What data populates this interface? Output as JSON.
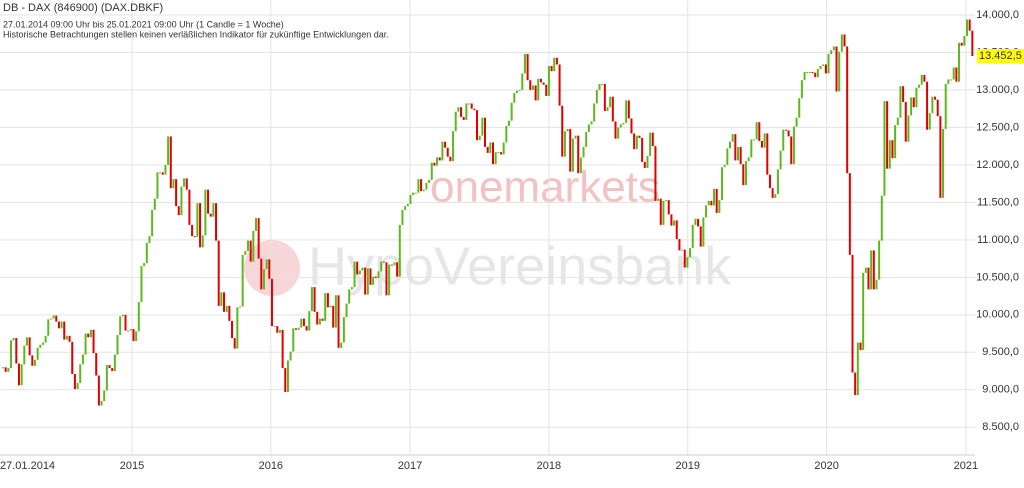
{
  "chart_data": {
    "type": "candlestick",
    "title": "DB - DAX (846900) (DAX.DBKF)",
    "subtitle": "27.01.2014 09:00 Uhr bis 25.01.2021 09:00 Uhr (1 Candle = 1 Woche)",
    "disclaimer": "Historische Betrachtungen stellen keinen verläßlichen Indikator für zukünftige Entwicklungen dar.",
    "watermarks": [
      "onemarkets",
      "HypoVereinsbank"
    ],
    "up_color": "#5cb91c",
    "down_color": "#e00000",
    "grid": true,
    "xlim": [
      "2014-01-27",
      "2021-01-25"
    ],
    "xticks": [
      {
        "value": "2014-01-27",
        "label": "27.01.2014"
      },
      {
        "value": "2015-01-01",
        "label": "2015"
      },
      {
        "value": "2016-01-01",
        "label": "2016"
      },
      {
        "value": "2017-01-01",
        "label": "2017"
      },
      {
        "value": "2018-01-01",
        "label": "2018"
      },
      {
        "value": "2019-01-01",
        "label": "2019"
      },
      {
        "value": "2020-01-01",
        "label": "2020"
      },
      {
        "value": "2021-01-01",
        "label": "2021"
      }
    ],
    "ylim": [
      8130,
      14200
    ],
    "yticks": [
      {
        "value": 8500,
        "label": "8.500,0"
      },
      {
        "value": 9000,
        "label": "9.000,0"
      },
      {
        "value": 9500,
        "label": "9.500,0"
      },
      {
        "value": 10000,
        "label": "10.000,0"
      },
      {
        "value": 10500,
        "label": "10.500,0"
      },
      {
        "value": 11000,
        "label": "11.000,0"
      },
      {
        "value": 11500,
        "label": "11.500,0"
      },
      {
        "value": 12000,
        "label": "12.000,0"
      },
      {
        "value": 12500,
        "label": "12.500,0"
      },
      {
        "value": 13000,
        "label": "13.000,0"
      },
      {
        "value": 13500,
        "label": "13.500,0"
      },
      {
        "value": 14000,
        "label": "14.000,0"
      }
    ],
    "last_price": {
      "value": 13452.5,
      "label": "13.452,5"
    },
    "values": [
      9300,
      9240,
      9290,
      9660,
      9690,
      9350,
      9060,
      9340,
      9590,
      9700,
      9460,
      9320,
      9400,
      9560,
      9600,
      9630,
      9720,
      9940,
      9950,
      9990,
      9910,
      9820,
      9910,
      9670,
      9720,
      9640,
      9210,
      9010,
      9090,
      9340,
      9470,
      9750,
      9700,
      9800,
      9490,
      9190,
      8790,
      8850,
      8990,
      9330,
      9290,
      9250,
      9470,
      9730,
      9980,
      10000,
      9790,
      9790,
      9810,
      9650,
      9780,
      10170,
      10650,
      10690,
      10960,
      11050,
      11400,
      11550,
      11900,
      11900,
      11870,
      12000,
      12380,
      11690,
      11810,
      11450,
      11330,
      11710,
      11820,
      11670,
      11200,
      11050,
      11040,
      11490,
      10900,
      11060,
      11670,
      11350,
      11310,
      11490,
      10990,
      10120,
      10300,
      10040,
      10120,
      9920,
      9690,
      9550,
      10100,
      10110,
      10800,
      10850,
      10990,
      10710,
      11120,
      11290,
      10750,
      10340,
      10610,
      10740,
      10480,
      9850,
      9850,
      9760,
      9800,
      9290,
      8970,
      9390,
      9510,
      9820,
      9800,
      9830,
      9950,
      9850,
      9790,
      10050,
      10370,
      10040,
      9870,
      9950,
      9920,
      10290,
      10100,
      10120,
      9830,
      10260,
      9560,
      9630,
      9970,
      10150,
      10340,
      10370,
      10710,
      10540,
      10590,
      10630,
      10270,
      10620,
      10400,
      10510,
      10490,
      10580,
      10710,
      10700,
      10260,
      10670,
      10660,
      10700,
      10510,
      11200,
      11400,
      11450,
      11480,
      11600,
      11630,
      11630,
      11810,
      11650,
      11670,
      11760,
      11800,
      12030,
      11990,
      12100,
      12060,
      12310,
      12230,
      12110,
      12050,
      12450,
      12710,
      12770,
      12640,
      12600,
      12820,
      12820,
      12750,
      12730,
      12330,
      12390,
      12630,
      12240,
      12160,
      12300,
      12010,
      12170,
      12170,
      12140,
      12300,
      12520,
      12590,
      12830,
      12960,
      12990,
      13000,
      13220,
      13480,
      13130,
      13000,
      13060,
      12860,
      13150,
      13100,
      13070,
      12920,
      13320,
      13250,
      13430,
      13340,
      12790,
      12110,
      12450,
      12480,
      11910,
      12350,
      12390,
      11890,
      12100,
      12240,
      12440,
      12540,
      12580,
      12820,
      13000,
      13080,
      13080,
      12720,
      12770,
      12910,
      12580,
      12350,
      12500,
      12540,
      12560,
      12860,
      12620,
      12420,
      12210,
      12390,
      12360,
      12040,
      11960,
      12120,
      12430,
      12250,
      11520,
      11550,
      11200,
      11520,
      11530,
      11340,
      11190,
      11260,
      11010,
      10860,
      10870,
      10630,
      10770,
      10890,
      11200,
      11280,
      11180,
      10910,
      11300,
      11460,
      11520,
      11460,
      11680,
      11360,
      11530,
      11970,
      12000,
      12220,
      12310,
      12410,
      12060,
      12240,
      12010,
      11730,
      12050,
      12100,
      12340,
      12340,
      12570,
      12320,
      12230,
      12420,
      11870,
      11690,
      11560,
      11610,
      11940,
      12190,
      12470,
      12460,
      12380,
      12010,
      12510,
      12630,
      12890,
      13130,
      13240,
      13240,
      13240,
      13230,
      13170,
      13280,
      13320,
      13340,
      13220,
      13480,
      13530,
      13580,
      12980,
      13510,
      13740,
      13580,
      11890,
      10800,
      9230,
      8930,
      9630,
      9530,
      10560,
      10630,
      10340,
      10860,
      10340,
      10470,
      10990,
      11590,
      12850,
      11950,
      12330,
      12090,
      12530,
      12630,
      13050,
      12840,
      12310,
      12660,
      12900,
      12770,
      13030,
      13070,
      13200,
      13110,
      12470,
      12690,
      12910,
      12870,
      12650,
      11560,
      12480,
      13080,
      13140,
      13140,
      13300,
      13110,
      13630,
      13590,
      13720,
      13940,
      13790,
      13452.5
    ]
  }
}
